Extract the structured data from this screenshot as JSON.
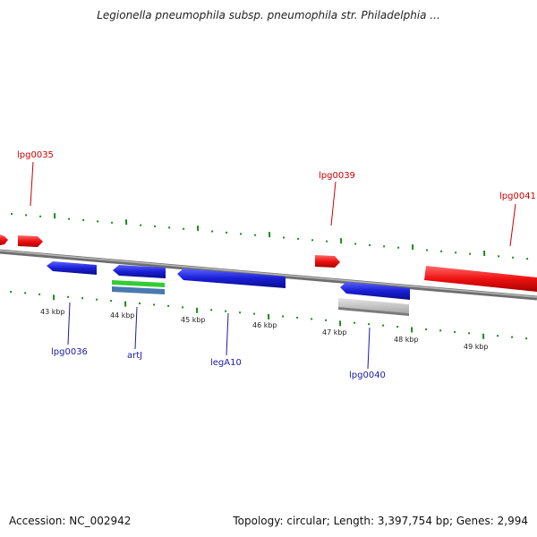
{
  "title": "Legionella pneumophila subsp. pneumophila str. Philadelphia ...",
  "footer": {
    "accession": "Accession: NC_002942",
    "topology": "Topology: circular; Length: 3,397,754 bp; Genes: 2,994"
  },
  "colors": {
    "forward_gene": "#ee1111",
    "reverse_gene": "#1a1fd6",
    "tick": "#1a8a1a",
    "backbone": "#8a8a8a",
    "forward_label": "#cc0000",
    "reverse_label": "#1a1aa8",
    "green_band": "#33cc33",
    "steel_band": "#4a78b0",
    "gray_feature": "#bdbdbd"
  },
  "scale_labels": [
    "43 kbp",
    "44 kbp",
    "45 kbp",
    "46 kbp",
    "47 kbp",
    "48 kbp",
    "49 kbp"
  ],
  "genes": {
    "forward": [
      "lpg0035",
      "lpg0039",
      "lpg0041"
    ],
    "reverse": [
      "lpg0036",
      "artJ",
      "legA10",
      "lpg0040"
    ]
  }
}
